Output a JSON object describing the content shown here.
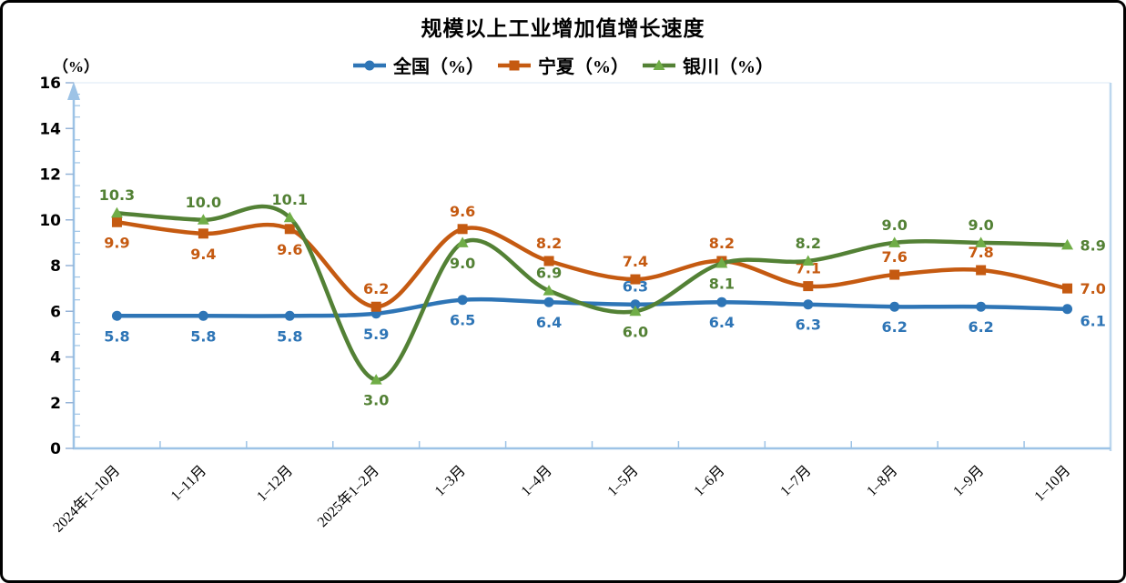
{
  "chart": {
    "title": "规模以上工业增加值增长速度",
    "y_axis_unit": "（%）"
  },
  "chart_data": {
    "type": "line",
    "title": "规模以上工业增加值增长速度",
    "ylabel": "（%）",
    "ylim": [
      0,
      16
    ],
    "y_major_ticks": [
      0,
      2,
      4,
      6,
      8,
      10,
      12,
      14,
      16
    ],
    "y_minor_step": 0.5,
    "grid": false,
    "smooth": true,
    "legend_position": "top-center",
    "axis_color": "#9DC3E6",
    "categories": [
      "2024年1–10月",
      "1–11月",
      "1–12月",
      "2025年1–2月",
      "1–3月",
      "1–4月",
      "1–5月",
      "1–6月",
      "1–7月",
      "1–8月",
      "1–9月",
      "1–10月"
    ],
    "series": [
      {
        "name": "全国（%）",
        "values": [
          5.8,
          5.8,
          5.8,
          5.9,
          6.5,
          6.4,
          6.3,
          6.4,
          6.3,
          6.2,
          6.2,
          6.1
        ],
        "color": "#2E75B6",
        "marker": "circle",
        "marker_color": "#2E75B6",
        "label_pos": [
          "below",
          "below",
          "below",
          "below",
          "below",
          "below",
          "above",
          "below",
          "below",
          "below",
          "below",
          "right-below"
        ]
      },
      {
        "name": "宁夏（%）",
        "values": [
          9.9,
          9.4,
          9.6,
          6.2,
          9.6,
          8.2,
          7.4,
          8.2,
          7.1,
          7.6,
          7.8,
          7.0
        ],
        "color": "#C55A11",
        "marker": "square",
        "marker_color": "#C55A11",
        "label_pos": [
          "below",
          "below",
          "below",
          "above",
          "above",
          "above",
          "above",
          "above",
          "above",
          "above",
          "above",
          "right"
        ]
      },
      {
        "name": "银川（%）",
        "values": [
          10.3,
          10.0,
          10.1,
          3.0,
          9.0,
          6.9,
          6.0,
          8.1,
          8.2,
          9.0,
          9.0,
          8.9
        ],
        "color": "#538135",
        "marker": "triangle",
        "marker_color": "#70AD47",
        "label_pos": [
          "above",
          "above",
          "above",
          "below",
          "below",
          "above",
          "below",
          "below",
          "above",
          "above",
          "above",
          "right"
        ]
      }
    ]
  }
}
